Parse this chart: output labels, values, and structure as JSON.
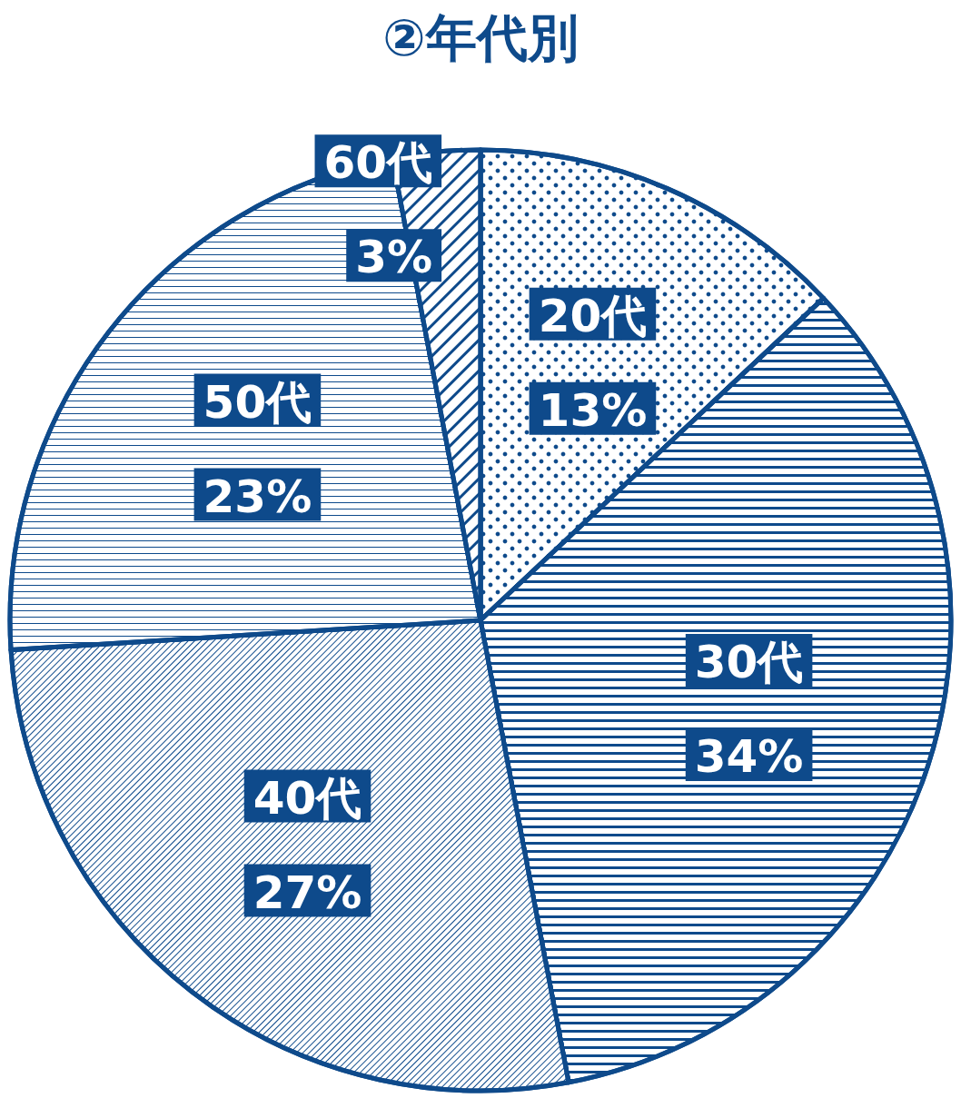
{
  "chart_data": {
    "type": "pie",
    "title": "②年代別",
    "categories": [
      "20代",
      "30代",
      "40代",
      "50代",
      "60代"
    ],
    "values": [
      13,
      34,
      27,
      23,
      3
    ],
    "value_labels": [
      "13%",
      "34%",
      "27%",
      "23%",
      "3%"
    ],
    "colors": [
      "#0e4a8b",
      "#0e4a8b",
      "#0e4a8b",
      "#0e4a8b",
      "#0e4a8b"
    ],
    "legend": false
  }
}
